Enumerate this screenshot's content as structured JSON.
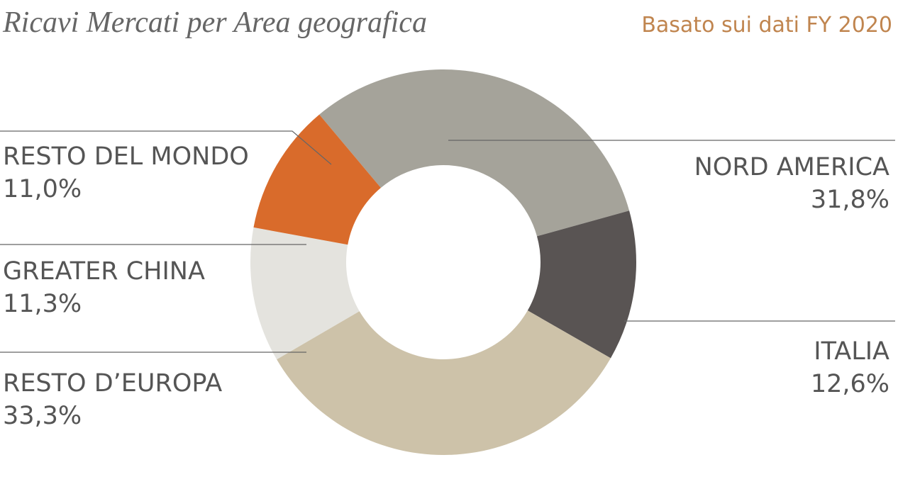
{
  "chart_data": {
    "type": "donut",
    "title": "Ricavi Mercati per Area geografica",
    "subtitle": "Basato sui dati FY 2020",
    "categories": [
      "NORD AMERICA",
      "ITALIA",
      "RESTO D’EUROPA",
      "GREATER CHINA",
      "RESTO DEL MONDO"
    ],
    "values": [
      31.8,
      12.6,
      33.3,
      11.3,
      11.0
    ],
    "value_labels": [
      "31,8%",
      "12,6%",
      "33,3%",
      "11,3%",
      "11,0%"
    ],
    "colors": [
      "#a5a39a",
      "#595453",
      "#cdc2a9",
      "#e4e3de",
      "#d96b2b"
    ]
  }
}
